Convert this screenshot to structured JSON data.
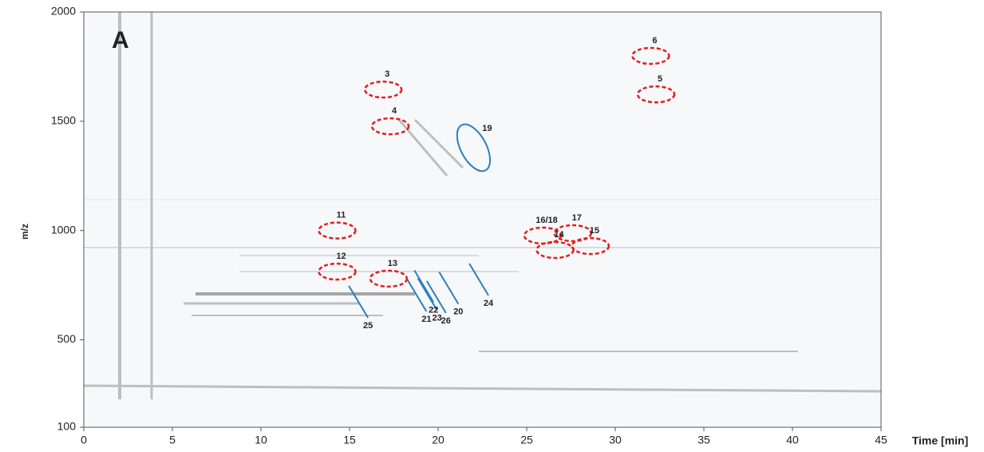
{
  "chart_data": {
    "type": "annotated-map",
    "panel": "A",
    "xlabel": "Time [min]",
    "ylabel": "m/z",
    "xlim": [
      0,
      45
    ],
    "xticks": [
      0,
      5,
      10,
      15,
      20,
      25,
      30,
      35,
      40,
      45
    ],
    "ylim": [
      100,
      2000
    ],
    "yticks": [
      100,
      500,
      1000,
      1500,
      2000
    ],
    "markers": [
      {
        "label": "3",
        "shape": "ellipse",
        "color": "#e02020",
        "x": 16.9,
        "y": 1645
      },
      {
        "label": "4",
        "shape": "ellipse",
        "color": "#e02020",
        "x": 17.3,
        "y": 1477
      },
      {
        "label": "6",
        "shape": "ellipse",
        "color": "#e02020",
        "x": 32.0,
        "y": 1799
      },
      {
        "label": "5",
        "shape": "ellipse",
        "color": "#e02020",
        "x": 32.3,
        "y": 1623
      },
      {
        "label": "19",
        "shape": "oval",
        "color": "#2a7fc0",
        "x": 22.0,
        "y": 1379
      },
      {
        "label": "11",
        "shape": "ellipse",
        "color": "#e02020",
        "x": 14.3,
        "y": 1000
      },
      {
        "label": "12",
        "shape": "ellipse",
        "color": "#e02020",
        "x": 14.3,
        "y": 812
      },
      {
        "label": "13",
        "shape": "ellipse",
        "color": "#e02020",
        "x": 17.2,
        "y": 780
      },
      {
        "label": "16/18",
        "shape": "ellipse",
        "color": "#e02020",
        "x": 25.9,
        "y": 977
      },
      {
        "label": "17",
        "shape": "ellipse",
        "color": "#e02020",
        "x": 27.6,
        "y": 988
      },
      {
        "label": "14",
        "shape": "ellipse",
        "color": "#e02020",
        "x": 26.6,
        "y": 911
      },
      {
        "label": "15",
        "shape": "ellipse",
        "color": "#e02020",
        "x": 28.6,
        "y": 929
      },
      {
        "label": "25",
        "shape": "line",
        "color": "#2a7fc0",
        "x": 15.5,
        "y": 674
      },
      {
        "label": "21",
        "shape": "line",
        "color": "#2a7fc0",
        "x": 18.8,
        "y": 703
      },
      {
        "label": "23",
        "shape": "line",
        "color": "#2a7fc0",
        "x": 19.4,
        "y": 708
      },
      {
        "label": "26",
        "shape": "line",
        "color": "#2a7fc0",
        "x": 19.9,
        "y": 696
      },
      {
        "label": "20",
        "shape": "line",
        "color": "#2a7fc0",
        "x": 20.6,
        "y": 737
      },
      {
        "label": "22",
        "shape": "line",
        "color": "#2a7fc0",
        "x": 19.2,
        "y": 745
      },
      {
        "label": "24",
        "shape": "line",
        "color": "#2a7fc0",
        "x": 22.3,
        "y": 776
      }
    ]
  }
}
